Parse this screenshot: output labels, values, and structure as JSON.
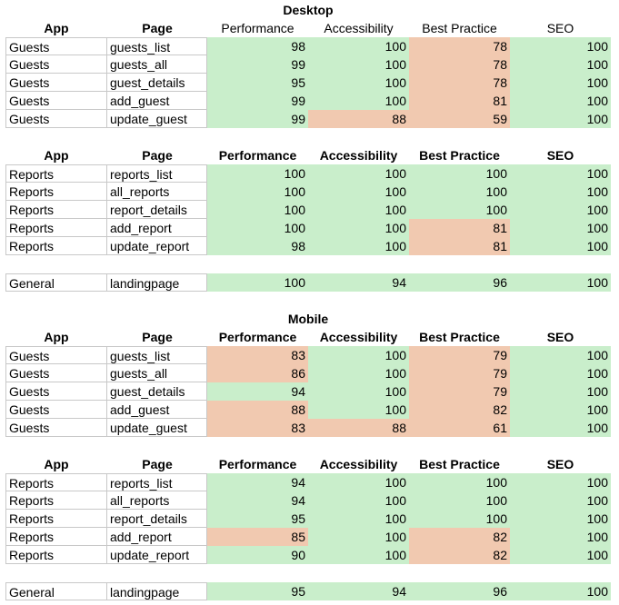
{
  "desktop": {
    "title": "Desktop",
    "headers": [
      "App",
      "Page",
      "Performance",
      "Accessibility",
      "Best Practice",
      "SEO"
    ],
    "guests": [
      {
        "app": "Guests",
        "page": "guests_list",
        "perf": "98",
        "acc": "100",
        "bp": "78",
        "seo": "100"
      },
      {
        "app": "Guests",
        "page": "guests_all",
        "perf": "99",
        "acc": "100",
        "bp": "78",
        "seo": "100"
      },
      {
        "app": "Guests",
        "page": "guest_details",
        "perf": "95",
        "acc": "100",
        "bp": "78",
        "seo": "100"
      },
      {
        "app": "Guests",
        "page": "add_guest",
        "perf": "99",
        "acc": "100",
        "bp": "81",
        "seo": "100"
      },
      {
        "app": "Guests",
        "page": "update_guest",
        "perf": "99",
        "acc": "88",
        "bp": "59",
        "seo": "100"
      }
    ],
    "reports": [
      {
        "app": "Reports",
        "page": "reports_list",
        "perf": "100",
        "acc": "100",
        "bp": "100",
        "seo": "100"
      },
      {
        "app": "Reports",
        "page": "all_reports",
        "perf": "100",
        "acc": "100",
        "bp": "100",
        "seo": "100"
      },
      {
        "app": "Reports",
        "page": "report_details",
        "perf": "100",
        "acc": "100",
        "bp": "100",
        "seo": "100"
      },
      {
        "app": "Reports",
        "page": "add_report",
        "perf": "100",
        "acc": "100",
        "bp": "81",
        "seo": "100"
      },
      {
        "app": "Reports",
        "page": "update_report",
        "perf": "98",
        "acc": "100",
        "bp": "81",
        "seo": "100"
      }
    ],
    "general": [
      {
        "app": "General",
        "page": "landingpage",
        "perf": "100",
        "acc": "94",
        "bp": "96",
        "seo": "100"
      }
    ]
  },
  "mobile": {
    "title": "Mobile",
    "headers": [
      "App",
      "Page",
      "Performance",
      "Accessibility",
      "Best Practice",
      "SEO"
    ],
    "guests": [
      {
        "app": "Guests",
        "page": "guests_list",
        "perf": "83",
        "acc": "100",
        "bp": "79",
        "seo": "100"
      },
      {
        "app": "Guests",
        "page": "guests_all",
        "perf": "86",
        "acc": "100",
        "bp": "79",
        "seo": "100"
      },
      {
        "app": "Guests",
        "page": "guest_details",
        "perf": "94",
        "acc": "100",
        "bp": "79",
        "seo": "100"
      },
      {
        "app": "Guests",
        "page": "add_guest",
        "perf": "88",
        "acc": "100",
        "bp": "82",
        "seo": "100"
      },
      {
        "app": "Guests",
        "page": "update_guest",
        "perf": "83",
        "acc": "88",
        "bp": "61",
        "seo": "100"
      }
    ],
    "reports": [
      {
        "app": "Reports",
        "page": "reports_list",
        "perf": "94",
        "acc": "100",
        "bp": "100",
        "seo": "100"
      },
      {
        "app": "Reports",
        "page": "all_reports",
        "perf": "94",
        "acc": "100",
        "bp": "100",
        "seo": "100"
      },
      {
        "app": "Reports",
        "page": "report_details",
        "perf": "95",
        "acc": "100",
        "bp": "100",
        "seo": "100"
      },
      {
        "app": "Reports",
        "page": "add_report",
        "perf": "85",
        "acc": "100",
        "bp": "82",
        "seo": "100"
      },
      {
        "app": "Reports",
        "page": "update_report",
        "perf": "90",
        "acc": "100",
        "bp": "82",
        "seo": "100"
      }
    ],
    "general": [
      {
        "app": "General",
        "page": "landingpage",
        "perf": "95",
        "acc": "94",
        "bp": "96",
        "seo": "100"
      }
    ]
  },
  "colors": {
    "good": "#c9eecb",
    "bad": "#f1c9b0"
  }
}
